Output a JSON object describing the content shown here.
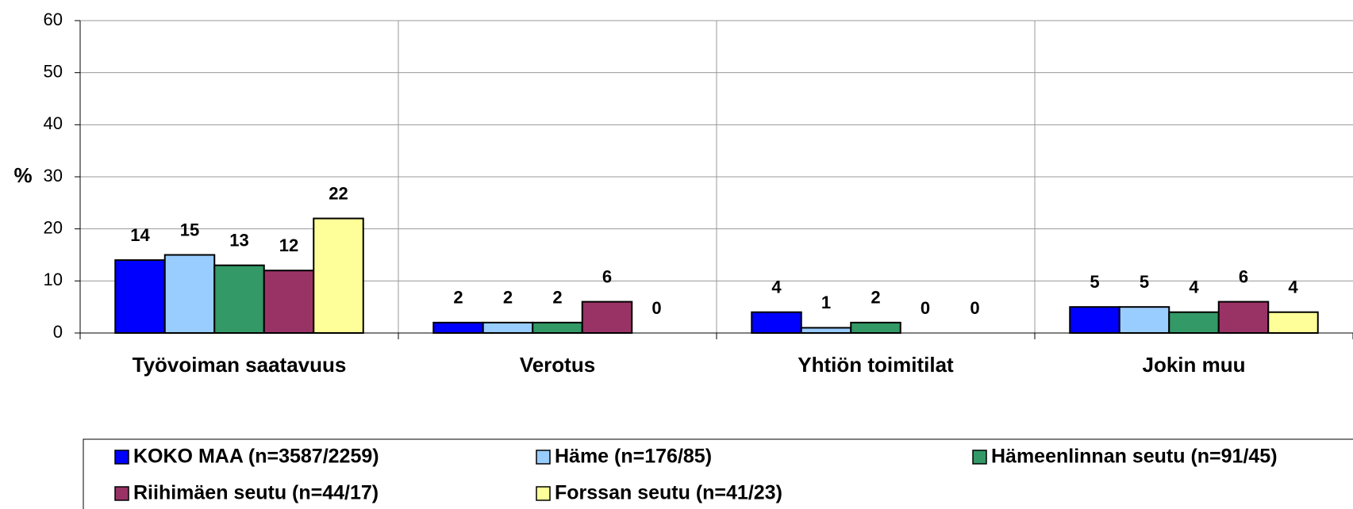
{
  "chart_data": {
    "type": "bar",
    "y_label": "%",
    "categories": [
      "Työvoiman saatavuus",
      "Verotus",
      "Yhtiön toimitilat",
      "Jokin muu"
    ],
    "series": [
      {
        "name": "KOKO MAA (n=3587/2259)",
        "color": "#0000ff",
        "values": [
          14,
          2,
          4,
          5
        ]
      },
      {
        "name": "Häme (n=176/85)",
        "color": "#99ccff",
        "values": [
          15,
          2,
          1,
          5
        ]
      },
      {
        "name": "Hämeenlinnan seutu (n=91/45)",
        "color": "#339966",
        "values": [
          13,
          2,
          2,
          4
        ]
      },
      {
        "name": "Riihimäen seutu (n=44/17)",
        "color": "#993366",
        "values": [
          12,
          6,
          0,
          6
        ]
      },
      {
        "name": "Forssan seutu (n=41/23)",
        "color": "#ffff99",
        "values": [
          22,
          0,
          0,
          4
        ]
      }
    ],
    "ylim": [
      0,
      60
    ],
    "yticks": [
      0,
      10,
      20,
      30,
      40,
      50,
      60
    ],
    "grid": true
  }
}
